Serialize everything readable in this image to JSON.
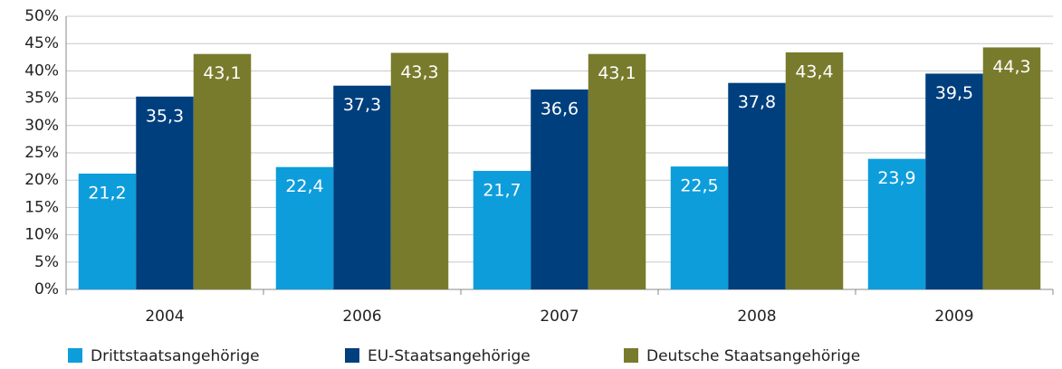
{
  "chart_data": {
    "type": "bar",
    "categories": [
      "2004",
      "2006",
      "2007",
      "2008",
      "2009"
    ],
    "series": [
      {
        "name": "Drittstaatsangehörige",
        "color": "#0d9ddb",
        "values": [
          21.2,
          22.4,
          21.7,
          22.5,
          23.9
        ],
        "value_labels": [
          "21,2",
          "22,4",
          "21,7",
          "22,5",
          "23,9"
        ]
      },
      {
        "name": "EU-Staatsangehörige",
        "color": "#003f7d",
        "values": [
          35.3,
          37.3,
          36.6,
          37.8,
          39.5
        ],
        "value_labels": [
          "35,3",
          "37,3",
          "36,6",
          "37,8",
          "39,5"
        ]
      },
      {
        "name": "Deutsche Staatsangehörige",
        "color": "#787b2c",
        "values": [
          43.1,
          43.3,
          43.1,
          43.4,
          44.3
        ],
        "value_labels": [
          "43,1",
          "43,3",
          "43,1",
          "43,4",
          "44,3"
        ]
      }
    ],
    "ylim": [
      0,
      50
    ],
    "yticks": [
      {
        "value": 0,
        "label": "0%"
      },
      {
        "value": 5,
        "label": "5%"
      },
      {
        "value": 10,
        "label": "10%"
      },
      {
        "value": 15,
        "label": "15%"
      },
      {
        "value": 20,
        "label": "20%"
      },
      {
        "value": 25,
        "label": "25%"
      },
      {
        "value": 30,
        "label": "30%"
      },
      {
        "value": 35,
        "label": "35%"
      },
      {
        "value": 40,
        "label": "40%"
      },
      {
        "value": 45,
        "label": "45%"
      },
      {
        "value": 50,
        "label": "50%"
      }
    ],
    "grid": true,
    "legend": "bottom"
  }
}
